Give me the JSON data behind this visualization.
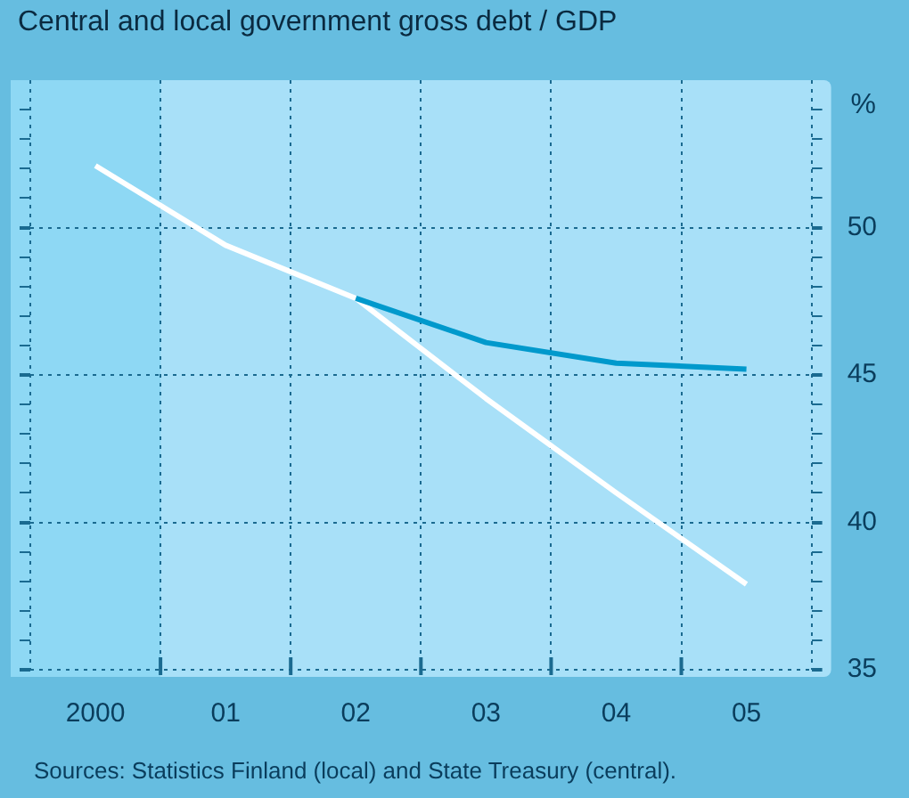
{
  "chart_data": {
    "type": "line",
    "title": "Central and local government gross debt / GDP",
    "ylabel": "%",
    "categories": [
      "2000",
      "01",
      "02",
      "03",
      "04",
      "05"
    ],
    "series": [
      {
        "color": "#0099cc",
        "values": [
          null,
          null,
          47.6,
          46.1,
          45.4,
          45.2
        ]
      },
      {
        "color": "#ffffff",
        "values": [
          52.1,
          49.4,
          47.6,
          44.2,
          41.0,
          37.9
        ]
      }
    ],
    "ylim": [
      35,
      55
    ],
    "yticks": [
      35,
      {
        "value": 36,
        "label": null
      },
      {
        "value": 37,
        "label": null
      },
      {
        "value": 38,
        "label": null
      },
      {
        "value": 39,
        "label": null
      },
      40,
      {
        "value": 41,
        "label": null
      },
      {
        "value": 42,
        "label": null
      },
      {
        "value": 43,
        "label": null
      },
      {
        "value": 44,
        "label": null
      },
      45,
      {
        "value": 46,
        "label": null
      },
      {
        "value": 47,
        "label": null
      },
      {
        "value": 48,
        "label": null
      },
      {
        "value": 49,
        "label": null
      },
      50,
      {
        "value": 51,
        "label": null
      },
      {
        "value": 52,
        "label": null
      },
      {
        "value": 53,
        "label": null
      },
      {
        "value": 54,
        "label": null
      }
    ],
    "bands": [
      {
        "axis": "x",
        "from": "2000",
        "to": "2000",
        "color": "#8ed8f4"
      }
    ],
    "grid": true,
    "legend": false,
    "marker": "none",
    "line_style": "solid",
    "annotations": [
      "Sources:   Statistics Finland (local) and State Treasury (central)."
    ]
  }
}
